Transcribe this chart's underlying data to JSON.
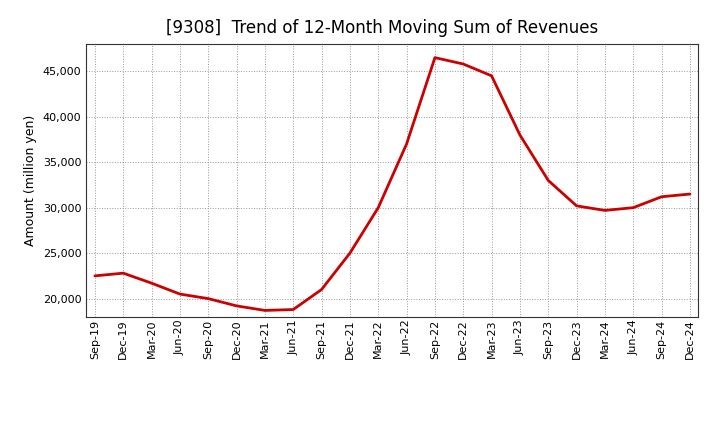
{
  "title": "[9308]  Trend of 12-Month Moving Sum of Revenues",
  "ylabel": "Amount (million yen)",
  "line_color": "#cc0000",
  "background_color": "#ffffff",
  "plot_bg_color": "#ffffff",
  "grid_color": "#999999",
  "x_labels": [
    "Sep-19",
    "Dec-19",
    "Mar-20",
    "Jun-20",
    "Sep-20",
    "Dec-20",
    "Mar-21",
    "Jun-21",
    "Sep-21",
    "Dec-21",
    "Mar-22",
    "Jun-22",
    "Sep-22",
    "Dec-22",
    "Mar-23",
    "Jun-23",
    "Sep-23",
    "Dec-23",
    "Mar-24",
    "Jun-24",
    "Sep-24",
    "Dec-24"
  ],
  "y_values": [
    22500,
    22800,
    21700,
    20500,
    20000,
    19200,
    18700,
    18800,
    21000,
    25000,
    30000,
    37000,
    46500,
    45800,
    44500,
    38000,
    33000,
    30200,
    29700,
    30000,
    31200,
    31500
  ],
  "ylim": [
    18000,
    48000
  ],
  "yticks": [
    20000,
    25000,
    30000,
    35000,
    40000,
    45000
  ],
  "title_fontsize": 12,
  "label_fontsize": 9,
  "tick_fontsize": 8,
  "line_width": 2.0
}
